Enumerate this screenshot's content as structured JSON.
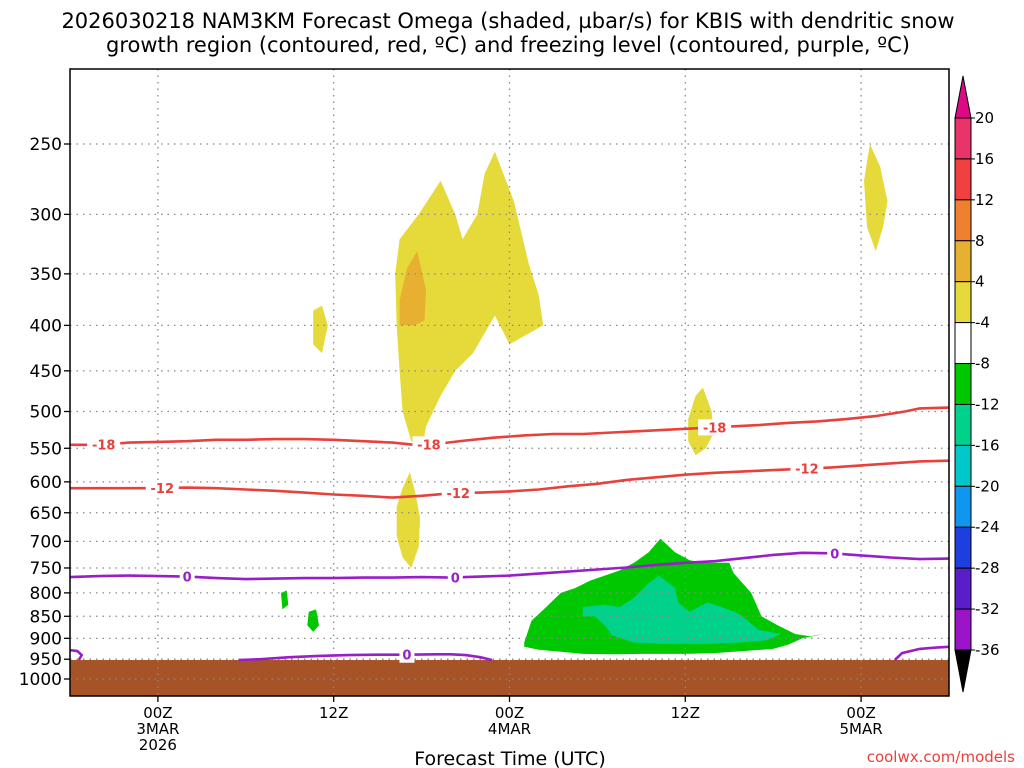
{
  "title_line1": "2026030218 NAM3KM Forecast Omega (shaded, µbar/s) for KBIS with dendritic snow",
  "title_line2": "growth region (contoured, red, ºC) and freezing level (contoured, purple, ºC)",
  "xlabel": "Forecast Time (UTC)",
  "credit": "coolwx.com/models",
  "chart_data": {
    "type": "heatmap",
    "y_axis": {
      "label": "",
      "unit": "hPa",
      "scale": "log-pressure",
      "ticks": [
        250,
        300,
        350,
        400,
        450,
        500,
        550,
        600,
        650,
        700,
        750,
        800,
        850,
        900,
        950,
        1000
      ],
      "range": [
        1050,
        200
      ],
      "grid": true
    },
    "x_axis": {
      "unit": "forecast hour",
      "range": [
        0,
        60
      ],
      "ticks": [
        {
          "hour": 6,
          "lines": [
            "00Z",
            "3MAR",
            "2026"
          ]
        },
        {
          "hour": 18,
          "lines": [
            "12Z"
          ]
        },
        {
          "hour": 30,
          "lines": [
            "00Z",
            "4MAR"
          ]
        },
        {
          "hour": 42,
          "lines": [
            "12Z"
          ]
        },
        {
          "hour": 54,
          "lines": [
            "00Z",
            "5MAR"
          ]
        }
      ],
      "grid": true
    },
    "colorbar": {
      "levels": [
        20,
        16,
        12,
        8,
        4,
        -4,
        -8,
        -12,
        -16,
        -20,
        -24,
        -28,
        -32,
        -36
      ],
      "colors": [
        "#e8336b",
        "#f04040",
        "#ee8030",
        "#e8b030",
        "#e6d93a",
        "#ffffff",
        "#00c800",
        "#00d28c",
        "#00c8c8",
        "#0f96ee",
        "#1f3ee0",
        "#5a1ec8",
        "#9b14c8",
        "#a0a0a0"
      ],
      "top_color": "#dc0a82",
      "bottom_color": "#000000"
    },
    "omega_regions": [
      {
        "level": "4 to 8",
        "color": "#e6d93a",
        "points": [
          [
            22.5,
            320
          ],
          [
            23.8,
            300
          ],
          [
            25.3,
            275
          ],
          [
            26.3,
            300
          ],
          [
            26.8,
            320
          ],
          [
            27.8,
            300
          ],
          [
            28.3,
            270
          ],
          [
            29.0,
            255
          ],
          [
            30.3,
            290
          ],
          [
            31.3,
            340
          ],
          [
            32.0,
            370
          ],
          [
            32.3,
            400
          ],
          [
            30.0,
            420
          ],
          [
            29.0,
            390
          ],
          [
            27.5,
            430
          ],
          [
            26.3,
            450
          ],
          [
            25.3,
            480
          ],
          [
            24.3,
            520
          ],
          [
            24.0,
            555
          ],
          [
            23.3,
            540
          ],
          [
            22.7,
            500
          ],
          [
            22.5,
            450
          ],
          [
            22.3,
            400
          ],
          [
            22.2,
            350
          ]
        ]
      },
      {
        "level": "8 to 12",
        "color": "#e8b030",
        "points": [
          [
            22.5,
            375
          ],
          [
            23.0,
            345
          ],
          [
            23.7,
            330
          ],
          [
            24.3,
            365
          ],
          [
            24.2,
            395
          ],
          [
            23.5,
            400
          ],
          [
            22.5,
            400
          ]
        ]
      },
      {
        "level": "4 to 8",
        "color": "#e6d93a",
        "points": [
          [
            16.6,
            385
          ],
          [
            17.2,
            380
          ],
          [
            17.6,
            400
          ],
          [
            17.2,
            430
          ],
          [
            16.6,
            420
          ]
        ]
      },
      {
        "level": "4 to 8",
        "color": "#e6d93a",
        "points": [
          [
            22.3,
            640
          ],
          [
            22.7,
            610
          ],
          [
            23.2,
            585
          ],
          [
            23.6,
            620
          ],
          [
            23.9,
            660
          ],
          [
            23.8,
            710
          ],
          [
            23.3,
            750
          ],
          [
            22.7,
            730
          ],
          [
            22.3,
            690
          ]
        ]
      },
      {
        "level": "4 to 8",
        "color": "#e6d93a",
        "points": [
          [
            42.2,
            510
          ],
          [
            42.7,
            480
          ],
          [
            43.2,
            470
          ],
          [
            43.8,
            500
          ],
          [
            43.9,
            530
          ],
          [
            43.4,
            550
          ],
          [
            42.7,
            560
          ],
          [
            42.2,
            540
          ]
        ]
      },
      {
        "level": "4 to 8",
        "color": "#e6d93a",
        "points": [
          [
            54.2,
            275
          ],
          [
            54.6,
            250
          ],
          [
            55.3,
            265
          ],
          [
            55.8,
            290
          ],
          [
            55.5,
            310
          ],
          [
            55.0,
            330
          ],
          [
            54.4,
            310
          ]
        ]
      },
      {
        "level": "-4 to -8",
        "color": "#00c800",
        "points": [
          [
            14.4,
            800
          ],
          [
            14.8,
            795
          ],
          [
            14.9,
            825
          ],
          [
            14.5,
            835
          ]
        ]
      },
      {
        "level": "-4 to -8",
        "color": "#00c800",
        "points": [
          [
            16.3,
            840
          ],
          [
            16.8,
            835
          ],
          [
            17.0,
            870
          ],
          [
            16.6,
            885
          ],
          [
            16.2,
            870
          ]
        ]
      },
      {
        "level": "-4 to -8",
        "color": "#00c800",
        "points": [
          [
            31.0,
            910
          ],
          [
            31.5,
            860
          ],
          [
            32.5,
            830
          ],
          [
            33.5,
            800
          ],
          [
            34.5,
            790
          ],
          [
            35.5,
            775
          ],
          [
            36.5,
            765
          ],
          [
            37.5,
            755
          ],
          [
            38.5,
            740
          ],
          [
            39.5,
            720
          ],
          [
            40.3,
            695
          ],
          [
            41.3,
            720
          ],
          [
            42.3,
            735
          ],
          [
            43.3,
            740
          ],
          [
            45.0,
            740
          ],
          [
            45.3,
            760
          ],
          [
            46.5,
            800
          ],
          [
            47.2,
            850
          ],
          [
            48.3,
            870
          ],
          [
            49.5,
            890
          ],
          [
            50.5,
            895
          ],
          [
            51.5,
            890
          ],
          [
            50.0,
            900
          ],
          [
            49.0,
            915
          ],
          [
            48.0,
            925
          ],
          [
            46.0,
            930
          ],
          [
            44.0,
            935
          ],
          [
            42.0,
            937
          ],
          [
            39.0,
            937
          ],
          [
            37.0,
            938
          ],
          [
            35.0,
            937
          ],
          [
            33.5,
            932
          ],
          [
            32.0,
            927
          ],
          [
            31.0,
            920
          ]
        ]
      },
      {
        "level": "-8 to -12",
        "color": "#00d28c",
        "points": [
          [
            35.0,
            830
          ],
          [
            36.5,
            825
          ],
          [
            37.5,
            830
          ],
          [
            38.5,
            810
          ],
          [
            39.5,
            780
          ],
          [
            40.2,
            765
          ],
          [
            41.3,
            790
          ],
          [
            41.5,
            820
          ],
          [
            42.3,
            840
          ],
          [
            43.5,
            820
          ],
          [
            44.5,
            830
          ],
          [
            45.7,
            845
          ],
          [
            47.0,
            880
          ],
          [
            48.5,
            890
          ],
          [
            47.5,
            905
          ],
          [
            45.5,
            910
          ],
          [
            43.5,
            913
          ],
          [
            41.0,
            913
          ],
          [
            38.5,
            910
          ],
          [
            37.0,
            893
          ],
          [
            36.5,
            870
          ],
          [
            35.8,
            850
          ],
          [
            35.0,
            850
          ]
        ]
      }
    ],
    "ground": {
      "color": "#a65328",
      "from_pressure": 952
    },
    "contours": [
      {
        "name": "dendritic -18°C",
        "color": "#e8413c",
        "label": "-18",
        "label_color": "#e8413c",
        "points": [
          [
            0,
            545
          ],
          [
            2,
            545
          ],
          [
            4,
            542
          ],
          [
            6,
            541
          ],
          [
            8,
            540
          ],
          [
            10,
            538
          ],
          [
            12,
            538
          ],
          [
            14,
            537
          ],
          [
            16,
            537
          ],
          [
            18,
            538
          ],
          [
            20,
            540
          ],
          [
            22,
            542
          ],
          [
            23.5,
            545
          ],
          [
            25,
            544
          ],
          [
            27,
            539
          ],
          [
            29,
            535
          ],
          [
            31,
            532
          ],
          [
            33,
            530
          ],
          [
            35,
            530
          ],
          [
            37,
            528
          ],
          [
            39,
            526
          ],
          [
            41,
            524
          ],
          [
            43,
            522
          ],
          [
            45,
            520
          ],
          [
            47,
            518
          ],
          [
            49,
            515
          ],
          [
            51,
            513
          ],
          [
            53,
            510
          ],
          [
            55,
            506
          ],
          [
            57,
            500
          ],
          [
            58,
            496
          ],
          [
            60,
            495
          ]
        ],
        "label_hours": [
          2.3,
          24.5,
          44.0
        ]
      },
      {
        "name": "dendritic -12°C",
        "color": "#e8413c",
        "label": "-12",
        "label_color": "#e8413c",
        "points": [
          [
            0,
            610
          ],
          [
            2,
            610
          ],
          [
            4,
            610
          ],
          [
            6,
            610
          ],
          [
            8,
            609
          ],
          [
            10,
            610
          ],
          [
            12,
            612
          ],
          [
            14,
            614
          ],
          [
            16,
            617
          ],
          [
            18,
            620
          ],
          [
            20,
            622
          ],
          [
            22,
            625
          ],
          [
            24,
            622
          ],
          [
            26,
            618
          ],
          [
            28,
            617
          ],
          [
            30,
            615
          ],
          [
            32,
            612
          ],
          [
            34,
            607
          ],
          [
            36,
            603
          ],
          [
            38,
            597
          ],
          [
            40,
            593
          ],
          [
            42,
            589
          ],
          [
            44,
            586
          ],
          [
            46,
            584
          ],
          [
            48,
            582
          ],
          [
            50,
            580
          ],
          [
            52,
            578
          ],
          [
            54,
            575
          ],
          [
            56,
            572
          ],
          [
            58,
            569
          ],
          [
            60,
            568
          ]
        ],
        "label_hours": [
          6.3,
          26.5,
          50.3
        ]
      },
      {
        "name": "freezing level 0°C",
        "color": "#9a1ec8",
        "label": "0",
        "label_color": "#9a1ec8",
        "points": [
          [
            0,
            768
          ],
          [
            2,
            766
          ],
          [
            4,
            765
          ],
          [
            6,
            766
          ],
          [
            8,
            767
          ],
          [
            10,
            770
          ],
          [
            12,
            772
          ],
          [
            14,
            771
          ],
          [
            16,
            770
          ],
          [
            18,
            770
          ],
          [
            20,
            769
          ],
          [
            22,
            769
          ],
          [
            24,
            768
          ],
          [
            26,
            769
          ],
          [
            28,
            767
          ],
          [
            30,
            765
          ],
          [
            32,
            761
          ],
          [
            34,
            757
          ],
          [
            36,
            753
          ],
          [
            38,
            749
          ],
          [
            40,
            744
          ],
          [
            42,
            740
          ],
          [
            44,
            737
          ],
          [
            46,
            731
          ],
          [
            48,
            725
          ],
          [
            50,
            721
          ],
          [
            52,
            722
          ],
          [
            54,
            726
          ],
          [
            56,
            730
          ],
          [
            58,
            733
          ],
          [
            60,
            732
          ]
        ],
        "label_hours": [
          8.0,
          26.3,
          52.2
        ]
      },
      {
        "name": "freezing level 0°C near ground",
        "color": "#9a1ec8",
        "label": "0",
        "label_color": "#9a1ec8",
        "points": [
          [
            11.5,
            952
          ],
          [
            13,
            950
          ],
          [
            15,
            945
          ],
          [
            17,
            942
          ],
          [
            19,
            940
          ],
          [
            21,
            939
          ],
          [
            23,
            939
          ],
          [
            25,
            938
          ],
          [
            26,
            938
          ],
          [
            27,
            940
          ],
          [
            28,
            945
          ],
          [
            28.8,
            952
          ]
        ],
        "label_hours": [
          23.0
        ]
      },
      {
        "name": "freezing level 0°C left edge",
        "color": "#9a1ec8",
        "label": "",
        "label_color": "#9a1ec8",
        "points": [
          [
            0,
            928
          ],
          [
            0.5,
            930
          ],
          [
            0.8,
            940
          ],
          [
            0.6,
            952
          ]
        ],
        "label_hours": []
      },
      {
        "name": "freezing level 0°C right edge",
        "color": "#9a1ec8",
        "label": "",
        "label_color": "#9a1ec8",
        "points": [
          [
            56.3,
            952
          ],
          [
            56.8,
            935
          ],
          [
            58,
            925
          ],
          [
            59,
            922
          ],
          [
            60,
            920
          ]
        ],
        "label_hours": []
      }
    ]
  }
}
